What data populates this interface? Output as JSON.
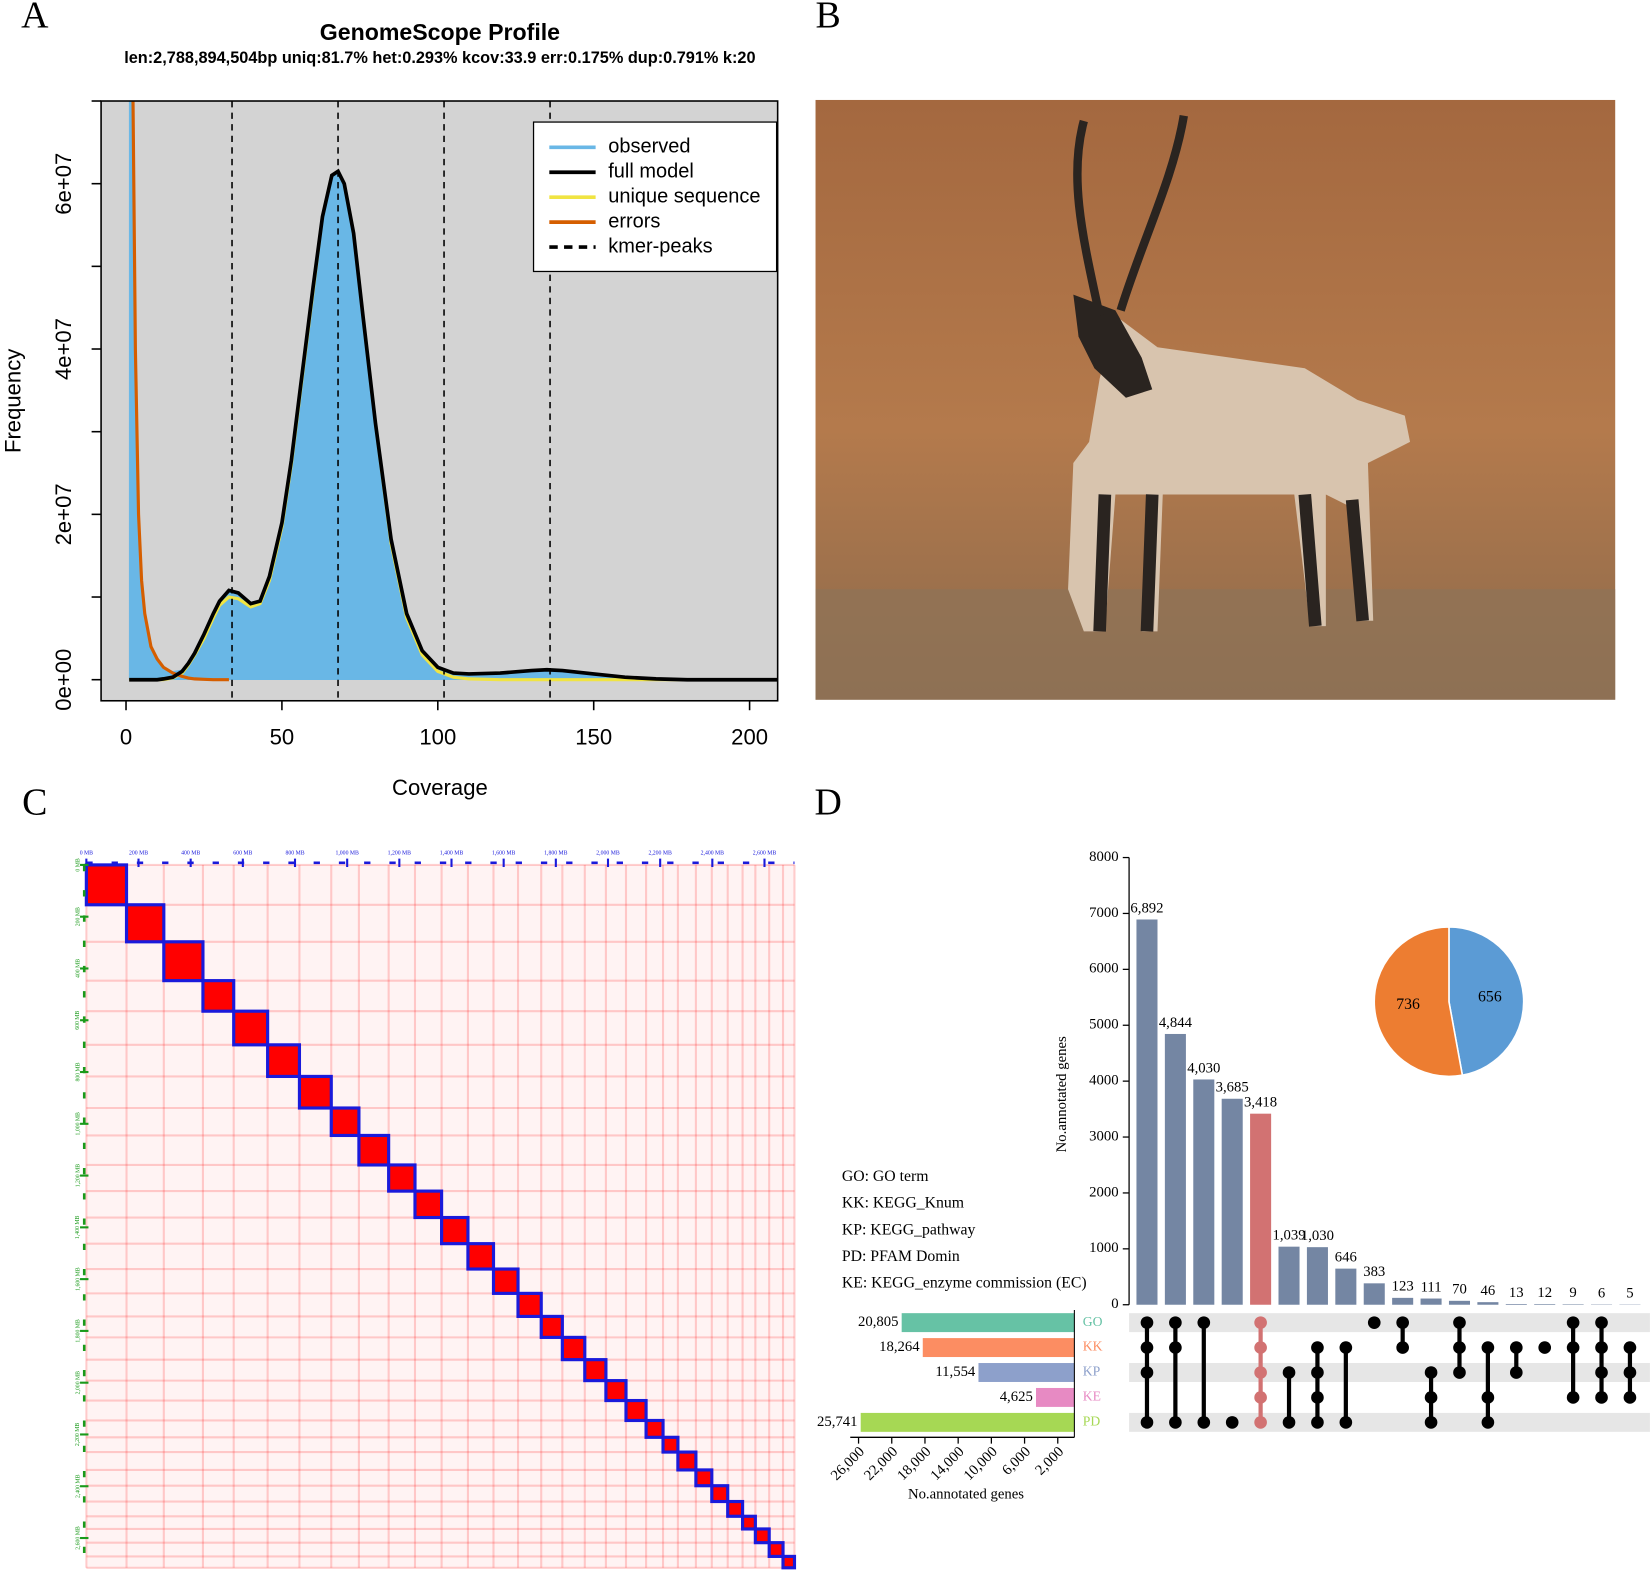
{
  "panel_labels": [
    "A",
    "B",
    "C",
    "D"
  ],
  "chart_data": [
    {
      "type": "line",
      "title": "GenomeScope Profile",
      "subtitle": "len:2,788,894,504bp uniq:81.7%  het:0.293% kcov:33.9 err:0.175%  dup:0.791%  k:20",
      "xlabel": "Coverage",
      "ylabel": "Frequency",
      "x": [
        1,
        2,
        3,
        4,
        5,
        6,
        8,
        10,
        12,
        15,
        18,
        20,
        22,
        25,
        28,
        30,
        33,
        36,
        40,
        43,
        46,
        50,
        53,
        56,
        60,
        63,
        66,
        68,
        70,
        73,
        76,
        80,
        85,
        90,
        95,
        100,
        105,
        110,
        120,
        130,
        135,
        140,
        150,
        160,
        170,
        180,
        190,
        200,
        209
      ],
      "series": [
        {
          "name": "observed",
          "color": "#69b7e6",
          "mark": "area",
          "values": [
            90000000,
            80000000,
            45000000,
            23000000,
            13000000,
            8000000,
            4000000,
            2500000,
            1500000,
            1000000,
            1200000,
            2200000,
            3300000,
            5500000,
            8000000,
            9500000,
            10800000,
            10500000,
            9200000,
            9500000,
            12500000,
            19000000,
            26500000,
            35500000,
            47500000,
            56000000,
            61000000,
            61500000,
            60000000,
            54000000,
            44000000,
            31000000,
            17000000,
            8000000,
            3500000,
            1500000,
            800000,
            700000,
            800000,
            1100000,
            1200000,
            1100000,
            700000,
            300000,
            100000,
            0,
            0,
            0,
            0
          ]
        },
        {
          "name": "full model",
          "color": "#000000",
          "mark": "line",
          "values": [
            0,
            0,
            0,
            0,
            0,
            0,
            0,
            0,
            100000,
            300000,
            1000000,
            2000000,
            3200000,
            5500000,
            8000000,
            9500000,
            10800000,
            10500000,
            9200000,
            9500000,
            12500000,
            19000000,
            26500000,
            35500000,
            47500000,
            56000000,
            61000000,
            61500000,
            60000000,
            54000000,
            44000000,
            31000000,
            17000000,
            8000000,
            3500000,
            1500000,
            800000,
            700000,
            800000,
            1100000,
            1200000,
            1100000,
            700000,
            300000,
            100000,
            0,
            0,
            0,
            0
          ]
        },
        {
          "name": "unique sequence",
          "color": "#f0e442",
          "mark": "line",
          "values": [
            0,
            0,
            0,
            0,
            0,
            0,
            0,
            0,
            0,
            200000,
            800000,
            1800000,
            3000000,
            5000000,
            7500000,
            9000000,
            10000000,
            9800000,
            8800000,
            9200000,
            12000000,
            18500000,
            26000000,
            35000000,
            47000000,
            56000000,
            61000000,
            61500000,
            60000000,
            54000000,
            44000000,
            31000000,
            16500000,
            7500000,
            3000000,
            1000000,
            300000,
            100000,
            0,
            0,
            0,
            0,
            0,
            0,
            0,
            0,
            0,
            0,
            0
          ]
        },
        {
          "name": "errors",
          "color": "#d55e00",
          "mark": "line",
          "values": [
            90000000,
            80000000,
            40000000,
            20000000,
            12000000,
            8000000,
            4000000,
            2500000,
            1500000,
            800000,
            400000,
            200000,
            100000,
            50000,
            0,
            0,
            0,
            null,
            null,
            null,
            null,
            null,
            null,
            null,
            null,
            null,
            null,
            null,
            null,
            null,
            null,
            null,
            null,
            null,
            null,
            null,
            null,
            null,
            null,
            null,
            null,
            null,
            null,
            null,
            null,
            null,
            null,
            null,
            null
          ]
        }
      ],
      "kmer_peaks": {
        "name": "kmer-peaks",
        "values": [
          34,
          68,
          102,
          136
        ]
      },
      "xlim": [
        -8,
        209
      ],
      "ylim": [
        -2550000,
        70000000
      ],
      "xticks": [
        0,
        50,
        100,
        150,
        200
      ],
      "yticks": [
        {
          "value": 0,
          "label": "0e+00"
        },
        {
          "value": 20000000,
          "label": "2e+07"
        },
        {
          "value": 40000000,
          "label": "4e+07"
        },
        {
          "value": 60000000,
          "label": "6e+07"
        }
      ],
      "y_minor_ticks": [
        10000000,
        30000000,
        50000000,
        70000000
      ],
      "legend": "top-right"
    },
    {
      "type": "heatmap",
      "color": "#ff0000",
      "xlim": [
        0,
        2715
      ],
      "xticks": [
        {
          "value": 0,
          "label": "0 MB"
        },
        {
          "value": 200,
          "label": "200 MB"
        },
        {
          "value": 400,
          "label": "400 MB"
        },
        {
          "value": 600,
          "label": "600 MB"
        },
        {
          "value": 800,
          "label": "800 MB"
        },
        {
          "value": 1000,
          "label": "1,000 MB"
        },
        {
          "value": 1200,
          "label": "1,200 MB"
        },
        {
          "value": 1400,
          "label": "1,400 MB"
        },
        {
          "value": 1600,
          "label": "1,600 MB"
        },
        {
          "value": 1800,
          "label": "1,800 MB"
        },
        {
          "value": 2000,
          "label": "2,000 MB"
        },
        {
          "value": 2200,
          "label": "2,200 MB"
        },
        {
          "value": 2400,
          "label": "2,400 MB"
        },
        {
          "value": 2600,
          "label": "2,600 MB"
        }
      ],
      "boundaries": [
        0,
        154,
        297,
        447,
        565,
        695,
        817,
        939,
        1045,
        1159,
        1260,
        1362,
        1463,
        1561,
        1655,
        1744,
        1825,
        1911,
        1992,
        2069,
        2146,
        2211,
        2268,
        2337,
        2398,
        2459,
        2516,
        2565,
        2618,
        2671,
        2715
      ]
    },
    {
      "type": "upset",
      "ylabel": "No.annotated genes",
      "values": [
        6892,
        4844,
        4030,
        3685,
        3418,
        1039,
        1030,
        646,
        383,
        123,
        111,
        70,
        46,
        13,
        12,
        9,
        6,
        5
      ],
      "value_labels": [
        "6,892",
        "4,844",
        "4,030",
        "3,685",
        "3,418",
        "1,039",
        "1,030",
        "646",
        "383",
        "123",
        "111",
        "70",
        "46",
        "13",
        "12",
        "9",
        "6",
        "5"
      ],
      "colors": [
        "#7486a3",
        "#7486a3",
        "#7486a3",
        "#7486a3",
        "#d27272",
        "#7486a3",
        "#7486a3",
        "#7486a3",
        "#7486a3",
        "#7486a3",
        "#7486a3",
        "#7486a3",
        "#7486a3",
        "#7486a3",
        "#7486a3",
        "#7486a3",
        "#7486a3",
        "#7486a3"
      ],
      "sets": [
        [
          0,
          1,
          2,
          4
        ],
        [
          0,
          1,
          4
        ],
        [
          0,
          4
        ],
        [
          4
        ],
        [
          0,
          1,
          2,
          3,
          4
        ],
        [
          2,
          4
        ],
        [
          1,
          2,
          3,
          4
        ],
        [
          1,
          4
        ],
        [
          0
        ],
        [
          0,
          1
        ],
        [
          2,
          3,
          4
        ],
        [
          0,
          1,
          2
        ],
        [
          1,
          3,
          4
        ],
        [
          1,
          2
        ],
        [
          1
        ],
        [
          0,
          1,
          3
        ],
        [
          0,
          1,
          2,
          3
        ],
        [
          1,
          2,
          3
        ]
      ],
      "ylim": [
        0,
        8000
      ],
      "yticks": [
        0,
        1000,
        2000,
        3000,
        4000,
        5000,
        6000,
        7000,
        8000
      ]
    },
    {
      "type": "bar",
      "orientation": "horizontal",
      "categories": [
        "GO",
        "KK",
        "KP",
        "KE",
        "PD"
      ],
      "values": [
        20805,
        18264,
        11554,
        4625,
        25741
      ],
      "value_labels": [
        "20,805",
        "18,264",
        "11,554",
        "4,625",
        "25,741"
      ],
      "colors": [
        "#66c2a5",
        "#fc8d62",
        "#8da0cb",
        "#e78ac3",
        "#a6d854"
      ],
      "xlabel": "No.annotated genes",
      "xlim": [
        0,
        27000
      ],
      "xticks": [
        {
          "value": 26000,
          "label": "26,000"
        },
        {
          "value": 22000,
          "label": "22,000"
        },
        {
          "value": 18000,
          "label": "18,000"
        },
        {
          "value": 14000,
          "label": "14,000"
        },
        {
          "value": 10000,
          "label": "10,000"
        },
        {
          "value": 6000,
          "label": "6,000"
        },
        {
          "value": 2000,
          "label": "2,000"
        }
      ]
    },
    {
      "type": "pie",
      "values": [
        656,
        736
      ],
      "colors": [
        "#5b9bd5",
        "#ed7d31"
      ]
    }
  ],
  "legend_notes": [
    "GO: GO term",
    "KK: KEGG_Knum",
    "KP: KEGG_pathway",
    "PD: PFAM Domin",
    "KE: KEGG_enzyme commission (EC)"
  ]
}
